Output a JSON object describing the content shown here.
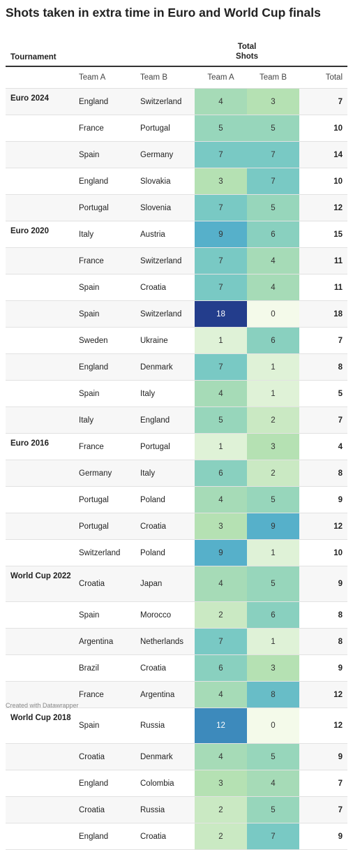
{
  "chart_data": {
    "type": "table",
    "title": "Shots taken in extra time in Euro and World Cup finals",
    "columns": {
      "tournament": "Tournament",
      "shots_header_line1": "Total",
      "shots_header_line2": "Shots",
      "team_a": "Team A",
      "team_b": "Team B",
      "team_a_shots": "Team A",
      "team_b_shots": "Team B",
      "total": "Total"
    },
    "rows": [
      {
        "tournament": "Euro 2024",
        "team_a": "England",
        "team_b": "Switzerland",
        "a": 4,
        "b": 3,
        "total": 7
      },
      {
        "tournament": "",
        "team_a": "France",
        "team_b": "Portugal",
        "a": 5,
        "b": 5,
        "total": 10
      },
      {
        "tournament": "",
        "team_a": "Spain",
        "team_b": "Germany",
        "a": 7,
        "b": 7,
        "total": 14
      },
      {
        "tournament": "",
        "team_a": "England",
        "team_b": "Slovakia",
        "a": 3,
        "b": 7,
        "total": 10
      },
      {
        "tournament": "",
        "team_a": "Portugal",
        "team_b": "Slovenia",
        "a": 7,
        "b": 5,
        "total": 12
      },
      {
        "tournament": "Euro 2020",
        "team_a": "Italy",
        "team_b": "Austria",
        "a": 9,
        "b": 6,
        "total": 15
      },
      {
        "tournament": "",
        "team_a": "France",
        "team_b": "Switzerland",
        "a": 7,
        "b": 4,
        "total": 11
      },
      {
        "tournament": "",
        "team_a": "Spain",
        "team_b": "Croatia",
        "a": 7,
        "b": 4,
        "total": 11
      },
      {
        "tournament": "",
        "team_a": "Spain",
        "team_b": "Switzerland",
        "a": 18,
        "b": 0,
        "total": 18
      },
      {
        "tournament": "",
        "team_a": "Sweden",
        "team_b": "Ukraine",
        "a": 1,
        "b": 6,
        "total": 7
      },
      {
        "tournament": "",
        "team_a": "England",
        "team_b": "Denmark",
        "a": 7,
        "b": 1,
        "total": 8
      },
      {
        "tournament": "",
        "team_a": "Spain",
        "team_b": "Italy",
        "a": 4,
        "b": 1,
        "total": 5
      },
      {
        "tournament": "",
        "team_a": "Italy",
        "team_b": "England",
        "a": 5,
        "b": 2,
        "total": 7
      },
      {
        "tournament": "Euro 2016",
        "team_a": "France",
        "team_b": "Portugal",
        "a": 1,
        "b": 3,
        "total": 4
      },
      {
        "tournament": "",
        "team_a": "Germany",
        "team_b": "Italy",
        "a": 6,
        "b": 2,
        "total": 8
      },
      {
        "tournament": "",
        "team_a": "Portugal",
        "team_b": "Poland",
        "a": 4,
        "b": 5,
        "total": 9
      },
      {
        "tournament": "",
        "team_a": "Portugal",
        "team_b": "Croatia",
        "a": 3,
        "b": 9,
        "total": 12
      },
      {
        "tournament": "",
        "team_a": "Switzerland",
        "team_b": "Poland",
        "a": 9,
        "b": 1,
        "total": 10
      },
      {
        "tournament": "World Cup 2022",
        "team_a": "Croatia",
        "team_b": "Japan",
        "a": 4,
        "b": 5,
        "total": 9
      },
      {
        "tournament": "",
        "team_a": "Spain",
        "team_b": "Morocco",
        "a": 2,
        "b": 6,
        "total": 8
      },
      {
        "tournament": "",
        "team_a": "Argentina",
        "team_b": "Netherlands",
        "a": 7,
        "b": 1,
        "total": 8
      },
      {
        "tournament": "",
        "team_a": "Brazil",
        "team_b": "Croatia",
        "a": 6,
        "b": 3,
        "total": 9
      },
      {
        "tournament": "",
        "team_a": "France",
        "team_b": "Argentina",
        "a": 4,
        "b": 8,
        "total": 12
      },
      {
        "tournament": "World Cup 2018",
        "team_a": "Spain",
        "team_b": "Russia",
        "a": 12,
        "b": 0,
        "total": 12
      },
      {
        "tournament": "",
        "team_a": "Croatia",
        "team_b": "Denmark",
        "a": 4,
        "b": 5,
        "total": 9
      },
      {
        "tournament": "",
        "team_a": "England",
        "team_b": "Colombia",
        "a": 3,
        "b": 4,
        "total": 7
      },
      {
        "tournament": "",
        "team_a": "Croatia",
        "team_b": "Russia",
        "a": 2,
        "b": 5,
        "total": 7
      },
      {
        "tournament": "",
        "team_a": "England",
        "team_b": "Croatia",
        "a": 2,
        "b": 7,
        "total": 9
      }
    ],
    "color_scale": {
      "min": 0,
      "max": 18,
      "low": "#f4faea",
      "mid": "#7ccbc3",
      "high": "#233d8c"
    }
  },
  "footer": "Created with Datawrapper"
}
